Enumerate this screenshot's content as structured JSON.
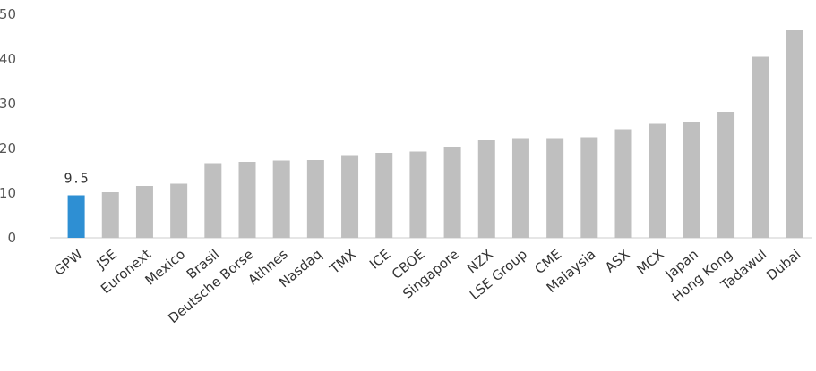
{
  "chart_data": {
    "type": "bar",
    "categories": [
      "GPW",
      "JSE",
      "Euronext",
      "Mexico",
      "Brasil",
      "Deutsche Borse",
      "Athnes",
      "Nasdaq",
      "TMX",
      "ICE",
      "CBOE",
      "Singapore",
      "NZX",
      "LSE Group",
      "CME",
      "Malaysia",
      "ASX",
      "MCX",
      "Japan",
      "Hong Kong",
      "Tadawul",
      "Dubai"
    ],
    "values": [
      9.5,
      10.2,
      11.6,
      12.1,
      16.7,
      17.0,
      17.3,
      17.4,
      18.5,
      19.0,
      19.3,
      20.4,
      21.8,
      22.3,
      22.3,
      22.5,
      24.3,
      25.5,
      25.8,
      28.2,
      40.5,
      46.5
    ],
    "highlight_index": 0,
    "highlight_label": "9.5",
    "ylim": [
      0,
      50
    ],
    "yticks": [
      0,
      10,
      20,
      30,
      40,
      50
    ],
    "grid": false,
    "colors": {
      "bar": "#bfbfbf",
      "highlight": "#2e8fd3",
      "axis": "#cccccc"
    }
  }
}
